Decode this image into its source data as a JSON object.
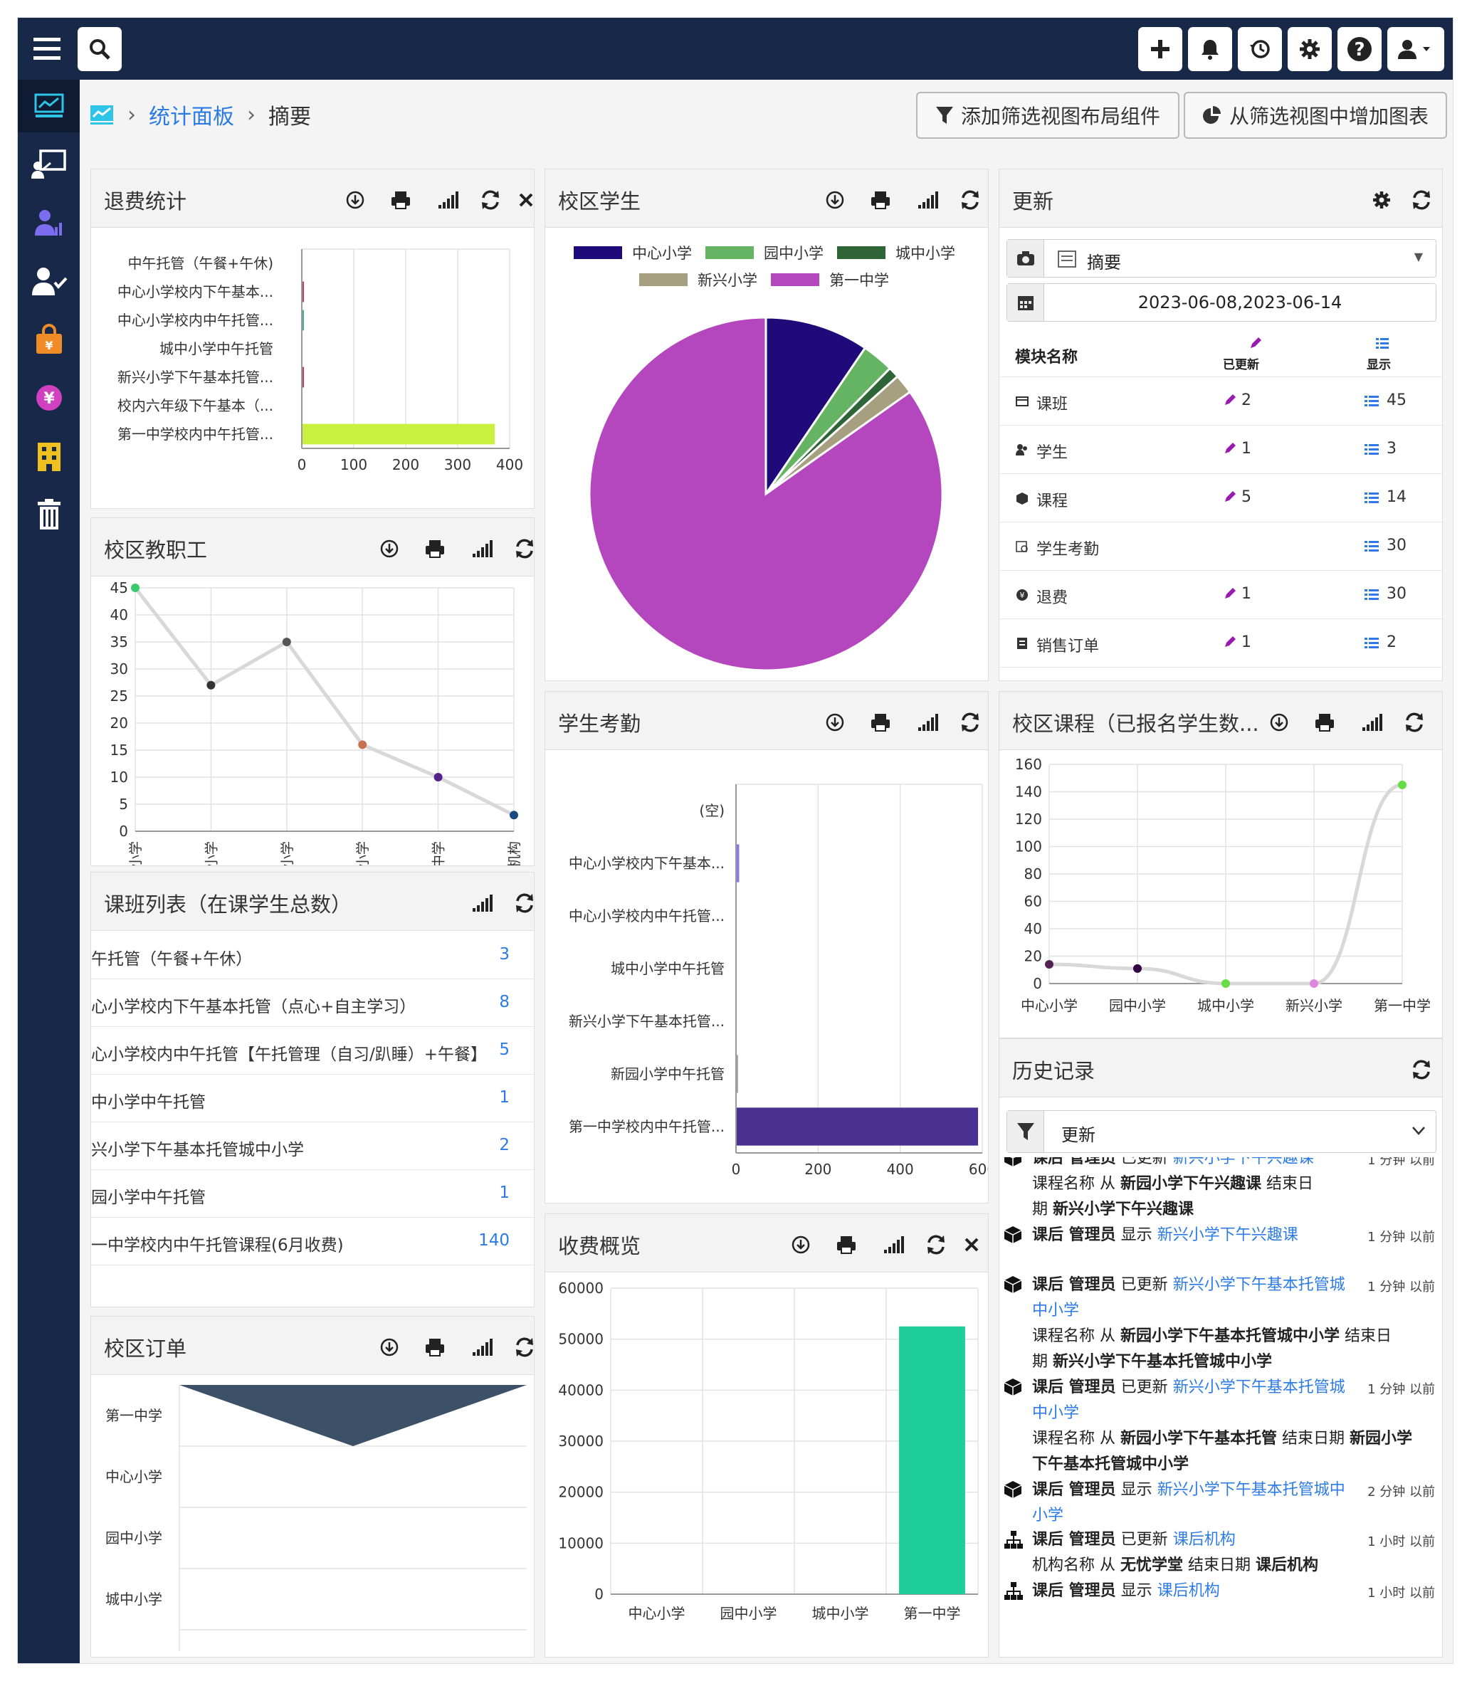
{
  "breadcrumb": {
    "parent": "统计面板",
    "current": "摘要"
  },
  "actions": {
    "add_layout": "添加筛选视图布局组件",
    "add_chart": "从筛选视图中增加图表"
  },
  "refund": {
    "title": "退费统计"
  },
  "staff": {
    "title": "校区教职工"
  },
  "classes": {
    "title": "课班列表（在课学生总数）",
    "rows": [
      {
        "label": "午托管（午餐+午休）",
        "value": "3"
      },
      {
        "label": "心小学校内下午基本托管（点心+自主学习）",
        "value": "8"
      },
      {
        "label": "心小学校内中午托管【午托管理（自习/趴睡）+午餐】",
        "value": "5"
      },
      {
        "label": "中小学中午托管",
        "value": "1"
      },
      {
        "label": "兴小学下午基本托管城中小学",
        "value": "2"
      },
      {
        "label": "园小学中午托管",
        "value": "1"
      },
      {
        "label": "一中学校内中午托管课程(6月收费)",
        "value": "140"
      }
    ]
  },
  "orders": {
    "title": "校区订单"
  },
  "students": {
    "title": "校区学生"
  },
  "attendance": {
    "title": "学生考勤"
  },
  "fees": {
    "title": "收费概览"
  },
  "updates": {
    "title": "更新",
    "view": "摘要",
    "date_range": "2023-06-08,2023-06-14",
    "col_module": "模块名称",
    "col_updated": "已更新",
    "col_shown": "显示",
    "rows": [
      {
        "icon": "class-icon",
        "name": "课班",
        "updated": "2",
        "shown": "45"
      },
      {
        "icon": "student-icon",
        "name": "学生",
        "updated": "1",
        "shown": "3"
      },
      {
        "icon": "course-icon",
        "name": "课程",
        "updated": "5",
        "shown": "14"
      },
      {
        "icon": "attendance-icon",
        "name": "学生考勤",
        "updated": "",
        "shown": "30"
      },
      {
        "icon": "refund-icon",
        "name": "退费",
        "updated": "1",
        "shown": "30"
      },
      {
        "icon": "order-icon",
        "name": "销售订单",
        "updated": "1",
        "shown": "2"
      }
    ]
  },
  "courses": {
    "title": "校区课程（已报名学生数..."
  },
  "history": {
    "title": "历史记录",
    "filter": "更新",
    "entries": [
      {
        "p": [
          "课后 管理员",
          "已更新",
          "新兴小学下午兴趣课",
          "1 分钟 以前"
        ]
      },
      {
        "p": [
          "课程名称 从",
          "新园小学下午兴趣课",
          "结束日",
          "期",
          "新兴小学下午兴趣课"
        ]
      },
      {
        "p": [
          "课后 管理员",
          "显示",
          "新兴小学下午兴趣课",
          "1 分钟 以前"
        ]
      },
      {
        "p": [
          "课后 管理员",
          "已更新",
          "新兴小学下午基本托管城",
          "中小学",
          "1 分钟 以前"
        ]
      },
      {
        "p": [
          "课程名称 从",
          "新园小学下午基本托管城中小学",
          "结束日",
          "期",
          "新兴小学下午基本托管城中小学"
        ]
      },
      {
        "p": [
          "课后 管理员",
          "已更新",
          "新兴小学下午基本托管城",
          "中小学",
          "1 分钟 以前"
        ]
      },
      {
        "p": [
          "课程名称 从",
          "新园小学下午基本托管",
          "结束日期",
          "新园小学",
          "下午基本托管城中小学"
        ]
      },
      {
        "p": [
          "课后 管理员",
          "显示",
          "新兴小学下午基本托管城中",
          "小学",
          "2 分钟 以前"
        ]
      },
      {
        "p": [
          "课后 管理员",
          "已更新",
          "课后机构",
          "1 小时 以前"
        ]
      },
      {
        "p": [
          "机构名称 从",
          "无忧学堂",
          "结束日期",
          "课后机构"
        ]
      },
      {
        "p": [
          "课后 管理员",
          "显示",
          "课后机构",
          "1 小时 以前"
        ]
      }
    ]
  },
  "chart_data": [
    {
      "id": "refund",
      "type": "bar",
      "orientation": "horizontal",
      "categories": [
        "中午托管（午餐+午休)",
        "中心小学校内下午基本...",
        "中心小学校内中午托管...",
        "城中小学中午托管",
        "新兴小学下午基本托管...",
        "校内六年级下午基本（...",
        "第一中学校内中午托管..."
      ],
      "values": [
        0,
        2,
        1,
        0,
        2,
        0,
        370
      ],
      "colors": [
        "#aaaaaa",
        "#c0406a",
        "#40b0a0",
        "#aaaaaa",
        "#c0406a",
        "#aaaaaa",
        "#c8f03c"
      ],
      "xlim": [
        0,
        400
      ],
      "xticks": [
        0,
        100,
        200,
        300,
        400
      ]
    },
    {
      "id": "staff",
      "type": "line",
      "categories": [
        "中心小学",
        "园中小学",
        "城中小学",
        "新兴小学",
        "第一中学",
        "课后机构"
      ],
      "values": [
        45,
        27,
        35,
        16,
        10,
        3
      ],
      "point_colors": [
        "#3cc86e",
        "#333333",
        "#555555",
        "#c87050",
        "#552288",
        "#1a4a80"
      ],
      "ylim": [
        0,
        45
      ],
      "yticks": [
        0,
        5,
        10,
        15,
        20,
        25,
        30,
        35,
        40,
        45
      ]
    },
    {
      "id": "students",
      "type": "pie",
      "series": [
        {
          "name": "中心小学",
          "value": 9.5,
          "color": "#1e0a78"
        },
        {
          "name": "园中小学",
          "value": 2.9,
          "color": "#64b464"
        },
        {
          "name": "城中小学",
          "value": 1.0,
          "color": "#2e6436"
        },
        {
          "name": "新兴小学",
          "value": 1.8,
          "color": "#a6a080"
        },
        {
          "name": "第一中学",
          "value": 84.8,
          "color": "#b446be"
        }
      ]
    },
    {
      "id": "attendance",
      "type": "bar",
      "orientation": "horizontal",
      "categories": [
        "(空)",
        "中心小学校内下午基本...",
        "中心小学校内中午托管...",
        "城中小学中午托管",
        "新兴小学下午基本托管...",
        "新园小学中午托管",
        "第一中学校内中午托管..."
      ],
      "values": [
        0,
        6,
        0,
        0,
        0,
        1,
        588
      ],
      "colors": [
        "#aaaaaa",
        "#8c78e6",
        "#aaaaaa",
        "#aaaaaa",
        "#aaaaaa",
        "#aaaaaa",
        "#4a3090"
      ],
      "xlim": [
        0,
        600
      ],
      "xticks": [
        0,
        200,
        400,
        600
      ]
    },
    {
      "id": "courses",
      "type": "line",
      "categories": [
        "中心小学",
        "园中小学",
        "城中小学",
        "新兴小学",
        "第一中学"
      ],
      "values": [
        14,
        11,
        0,
        0,
        145
      ],
      "point_colors": [
        "#552255",
        "#330044",
        "#66dd44",
        "#dd88dd",
        "#66dd44"
      ],
      "ylim": [
        0,
        160
      ],
      "yticks": [
        0,
        20,
        40,
        60,
        80,
        100,
        120,
        140,
        160
      ]
    },
    {
      "id": "orders",
      "type": "funnel",
      "categories": [
        "第一中学",
        "中心小学",
        "园中小学",
        "城中小学"
      ],
      "values": [
        100,
        0,
        0,
        0
      ],
      "color": "#3c5068"
    },
    {
      "id": "fees",
      "type": "bar",
      "categories": [
        "中心小学",
        "园中小学",
        "城中小学",
        "第一中学"
      ],
      "values": [
        0,
        0,
        0,
        52500
      ],
      "color": "#1ecf9c",
      "ylim": [
        0,
        60000
      ],
      "yticks": [
        0,
        10000,
        20000,
        30000,
        40000,
        50000,
        60000
      ]
    }
  ]
}
